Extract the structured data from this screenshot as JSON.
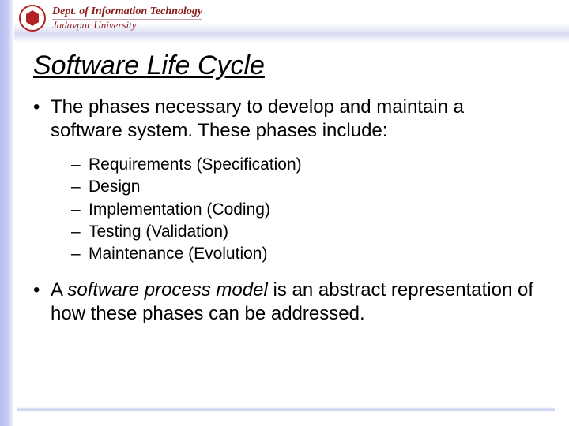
{
  "header": {
    "dept_line1": "Dept. of Information Technology",
    "dept_line2": "Jadavpur University"
  },
  "slide": {
    "title": "Software Life Cycle",
    "bullets": [
      {
        "text": "The phases necessary to develop and maintain a software system.  These phases include:",
        "sub": [
          "Requirements (Specification)",
          "Design",
          "Implementation (Coding)",
          "Testing (Validation)",
          "Maintenance (Evolution)"
        ]
      },
      {
        "prefix": "A ",
        "italic": "software process model",
        "suffix": " is an abstract representation of how these phases can be addressed."
      }
    ]
  },
  "colors": {
    "accent_red": "#8b1a1a",
    "stripe": "#b8c0f0",
    "text": "#000000",
    "background": "#ffffff"
  },
  "typography": {
    "title_fontsize": 34,
    "body_fontsize": 24,
    "sub_fontsize": 21,
    "header_fontsize": 14
  }
}
